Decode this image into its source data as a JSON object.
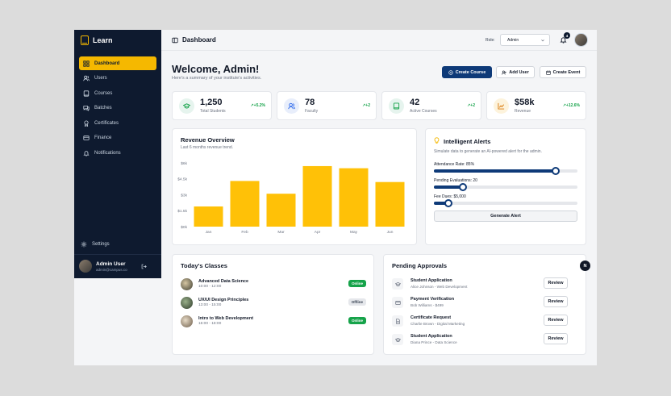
{
  "brand": {
    "name": "Learn"
  },
  "sidebar": {
    "items": [
      {
        "label": "Dashboard",
        "icon": "grid-icon",
        "active": true
      },
      {
        "label": "Users",
        "icon": "users-icon",
        "active": false
      },
      {
        "label": "Courses",
        "icon": "book-icon",
        "active": false
      },
      {
        "label": "Batches",
        "icon": "chat-icon",
        "active": false
      },
      {
        "label": "Certificates",
        "icon": "award-icon",
        "active": false
      },
      {
        "label": "Finance",
        "icon": "card-icon",
        "active": false
      },
      {
        "label": "Notifications",
        "icon": "bell-icon",
        "active": false
      }
    ],
    "settings_label": "Settings",
    "user": {
      "name": "Admin User",
      "email": "admin@campus.co"
    }
  },
  "topbar": {
    "title": "Dashboard",
    "role_label": "Role:",
    "role_value": "Admin",
    "notification_count": "4"
  },
  "header": {
    "welcome": "Welcome, Admin!",
    "subtitle": "Here's a summary of your institute's activities.",
    "create_course": "Create Course",
    "add_user": "Add User",
    "create_event": "Create Event"
  },
  "stats": [
    {
      "value": "1,250",
      "label": "Total Students",
      "delta": "↗+5.2%",
      "icon": "graduation-cap-icon",
      "color": "#e6f4ee",
      "ink": "#16a34a"
    },
    {
      "value": "78",
      "label": "Faculty",
      "delta": "↗+2",
      "icon": "users-icon",
      "color": "#e8eefb",
      "ink": "#2563eb"
    },
    {
      "value": "42",
      "label": "Active Courses",
      "delta": "↗+2",
      "icon": "book-icon",
      "color": "#e6f4ee",
      "ink": "#16a34a"
    },
    {
      "value": "$58k",
      "label": "Revenue",
      "delta": "↗+12.6%",
      "icon": "chart-icon",
      "color": "#fdf3dc",
      "ink": "#d97706"
    }
  ],
  "revenue": {
    "title": "Revenue Overview",
    "subtitle": "Last 6 months revenue trend."
  },
  "chart_data": {
    "type": "bar",
    "title": "Revenue Overview",
    "categories": [
      "Jan",
      "Feb",
      "Mar",
      "Apr",
      "May",
      "Jun"
    ],
    "values": [
      1900,
      4300,
      3100,
      5700,
      5500,
      4200
    ],
    "ylim": [
      0,
      6000
    ],
    "yticks": [
      0,
      1500,
      3000,
      4500,
      6000
    ],
    "ytick_labels": [
      "$0k",
      "$1.5k",
      "$3k",
      "$4.5k",
      "$6k"
    ],
    "color": "#ffc107",
    "grid": false
  },
  "alerts": {
    "title": "Intelligent Alerts",
    "subtitle": "Simulate data to generate an AI-powered alert for the admin.",
    "sliders": [
      {
        "label": "Attendance Rate: 85%",
        "fraction": 0.85
      },
      {
        "label": "Pending Evaluations: 20",
        "fraction": 0.2
      },
      {
        "label": "Fee Dues: $5,000",
        "fraction": 0.1
      }
    ],
    "button": "Generate Alert"
  },
  "classes": {
    "title": "Today's Classes",
    "items": [
      {
        "name": "Advanced Data Science",
        "time": "10:00 - 12:00",
        "status": "Online"
      },
      {
        "name": "UX/UI Design Principles",
        "time": "13:00 - 15:00",
        "status": "Offline"
      },
      {
        "name": "Intro to Web Development",
        "time": "16:00 - 18:00",
        "status": "Online"
      }
    ]
  },
  "approvals": {
    "title": "Pending Approvals",
    "items": [
      {
        "name": "Student Application",
        "sub": "Alice Johnson - Web Development",
        "action": "Review",
        "icon": "graduation-cap-icon"
      },
      {
        "name": "Payment Verification",
        "sub": "Bob Williams - $499",
        "action": "Review",
        "icon": "card-icon"
      },
      {
        "name": "Certificate Request",
        "sub": "Charlie Brown - Digital Marketing",
        "action": "Review",
        "icon": "document-icon"
      },
      {
        "name": "Student Application",
        "sub": "Diana Prince - Data Science",
        "action": "Review",
        "icon": "graduation-cap-icon"
      }
    ]
  },
  "floating_badge": "N"
}
